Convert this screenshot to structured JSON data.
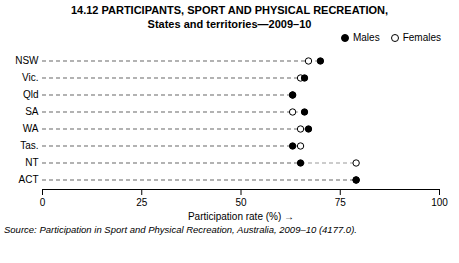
{
  "chart_data": {
    "type": "dot",
    "orientation": "horizontal",
    "title": "14.12   PARTICIPANTS, SPORT AND PHYSICAL RECREATION,",
    "subtitle": "States and territories—2009–10",
    "source": "Source: Participation in Sport and Physical Recreation, Australia, 2009–10 (4177.0).",
    "xlabel": "Participation rate (%)",
    "categories": [
      "NSW",
      "Vic.",
      "Qld",
      "SA",
      "WA",
      "Tas.",
      "NT",
      "ACT"
    ],
    "series": [
      {
        "name": "Males",
        "color": "#000000",
        "marker": "circle",
        "values": [
          70,
          66,
          63,
          66,
          67,
          63,
          65,
          79
        ]
      },
      {
        "name": "Females",
        "color": "#000000",
        "marker": "open_circle",
        "values": [
          67,
          65,
          63,
          63,
          65,
          65,
          79,
          79
        ]
      }
    ],
    "color": "#999999",
    "line_style": "dashed",
    "xlim": [
      0,
      100
    ],
    "xticks": [
      0,
      25,
      50,
      75,
      100
    ],
    "grid": false,
    "legend": "upper right"
  }
}
